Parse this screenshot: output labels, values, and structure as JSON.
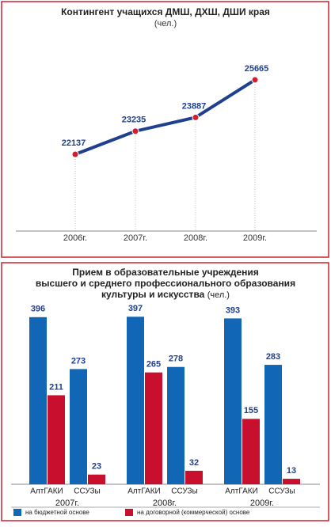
{
  "chart_data": [
    {
      "type": "line",
      "title": [
        "Контингент учащихся ДМШ, ДХШ, ДШИ края"
      ],
      "subtitle": "(чел.)",
      "categories": [
        "2006г.",
        "2007г.",
        "2008г.",
        "2009г."
      ],
      "series": [
        {
          "name": null,
          "color": "#1f3f8f",
          "values": [
            22137,
            23235,
            23887,
            25665
          ]
        }
      ],
      "marker_color": "#d0202e",
      "ylim": [
        18500,
        27200
      ]
    },
    {
      "type": "bar",
      "title": [
        "Прием в образовательные учреждения",
        "высшего и среднего профессионального образования",
        "культуры и искусства"
      ],
      "subtitle": "(чел.)",
      "categories": [
        "АлтГАКИ",
        "ССУЗы",
        "АлтГАКИ",
        "ССУЗы",
        "АлтГАКИ",
        "ССУЗы"
      ],
      "groups": [
        "2007г.",
        "2008г.",
        "2009г."
      ],
      "series": [
        {
          "name": "на бюджетной основе",
          "color": "#1166b5",
          "values": [
            396,
            273,
            397,
            278,
            393,
            283
          ]
        },
        {
          "name": "на договорной (коммерческой) основе",
          "color": "#c8102e",
          "values": [
            211,
            23,
            265,
            32,
            155,
            13
          ]
        }
      ],
      "ylim": [
        0,
        420
      ]
    }
  ]
}
